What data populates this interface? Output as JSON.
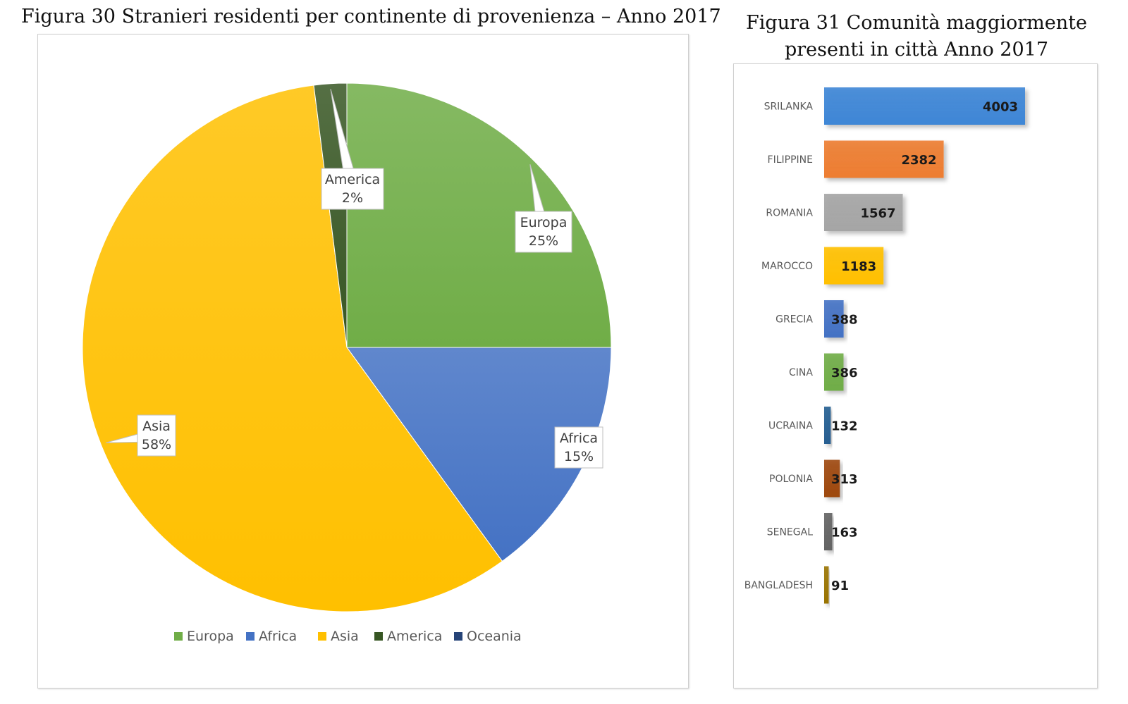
{
  "pie_title": "Figura 30 Stranieri residenti per continente di provenienza – Anno 2017",
  "bar_title": "Figura 31 Comunità maggiormente presenti in città Anno 2017",
  "chart_data": [
    {
      "type": "pie",
      "title": "Figura 30 Stranieri residenti per continente di provenienza – Anno 2017",
      "legend_position": "bottom",
      "slices": [
        {
          "label": "Europa",
          "value": 25,
          "color": "#70AD47",
          "data_label": "Europa\n25%",
          "show_label": true
        },
        {
          "label": "Africa",
          "value": 15,
          "color": "#4472C4",
          "data_label": "Africa\n15%",
          "show_label": true
        },
        {
          "label": "Asia",
          "value": 58,
          "color": "#FFC000",
          "data_label": "Asia\n58%",
          "show_label": true
        },
        {
          "label": "America",
          "value": 2,
          "color": "#375623",
          "data_label": "America\n2%",
          "show_label": true
        },
        {
          "label": "Oceania",
          "value": 0,
          "color": "#264478",
          "data_label": "",
          "show_label": false
        }
      ]
    },
    {
      "type": "bar",
      "orientation": "horizontal",
      "title": "Figura 31 Comunità maggiormente presenti in città Anno 2017",
      "categories": [
        "SRILANKA",
        "FILIPPINE",
        "ROMANIA",
        "MAROCCO",
        "GRECIA",
        "CINA",
        "UCRAINA",
        "POLONIA",
        "SENEGAL",
        "BANGLADESH"
      ],
      "values": [
        4003,
        2382,
        1567,
        1183,
        388,
        386,
        132,
        313,
        163,
        91
      ],
      "colors": [
        "#3E86D6",
        "#ED7D31",
        "#A5A5A5",
        "#FFC000",
        "#4472C4",
        "#70AD47",
        "#255E91",
        "#9E480E",
        "#636363",
        "#997300"
      ],
      "xlim": [
        0,
        4003
      ],
      "grid": false,
      "data_labels": true
    }
  ]
}
